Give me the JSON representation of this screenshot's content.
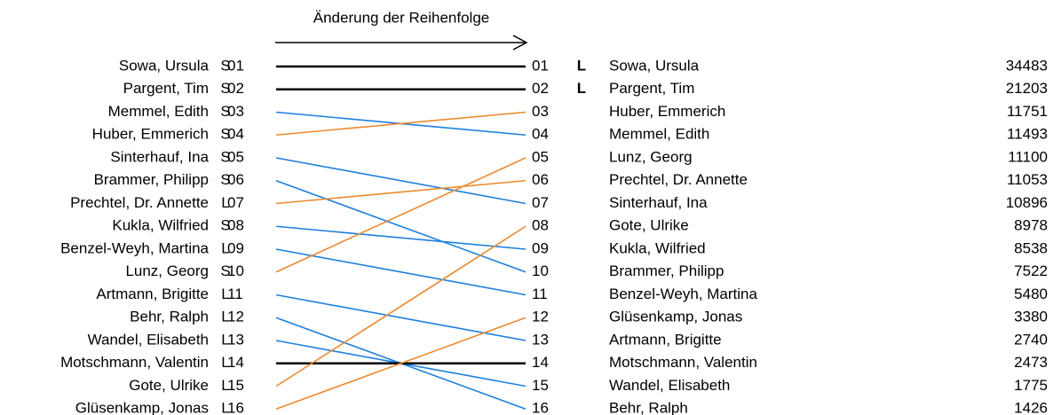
{
  "title": "Änderung der Reihenfolge",
  "left": [
    {
      "name": "Sowa, Ursula",
      "list": "S",
      "rank": "01"
    },
    {
      "name": "Pargent, Tim",
      "list": "S",
      "rank": "02"
    },
    {
      "name": "Memmel, Edith",
      "list": "S",
      "rank": "03"
    },
    {
      "name": "Huber, Emmerich",
      "list": "S",
      "rank": "04"
    },
    {
      "name": "Sinterhauf, Ina",
      "list": "S",
      "rank": "05"
    },
    {
      "name": "Brammer, Philipp",
      "list": "S",
      "rank": "06"
    },
    {
      "name": "Prechtel, Dr. Annette",
      "list": "L",
      "rank": "07"
    },
    {
      "name": "Kukla, Wilfried",
      "list": "S",
      "rank": "08"
    },
    {
      "name": "Benzel-Weyh, Martina",
      "list": "L",
      "rank": "09"
    },
    {
      "name": "Lunz, Georg",
      "list": "S",
      "rank": "10"
    },
    {
      "name": "Artmann, Brigitte",
      "list": "L",
      "rank": "11"
    },
    {
      "name": "Behr, Ralph",
      "list": "L",
      "rank": "12"
    },
    {
      "name": "Wandel, Elisabeth",
      "list": "L",
      "rank": "13"
    },
    {
      "name": "Motschmann, Valentin",
      "list": "L",
      "rank": "14"
    },
    {
      "name": "Gote, Ulrike",
      "list": "L",
      "rank": "15"
    },
    {
      "name": "Glüsenkamp, Jonas",
      "list": "L",
      "rank": "16"
    }
  ],
  "right": [
    {
      "rank": "01",
      "mark": "L",
      "name": "Sowa, Ursula",
      "votes": 34483
    },
    {
      "rank": "02",
      "mark": "L",
      "name": "Pargent, Tim",
      "votes": 21203
    },
    {
      "rank": "03",
      "name": "Huber, Emmerich",
      "votes": 11751
    },
    {
      "rank": "04",
      "name": "Memmel, Edith",
      "votes": 11493
    },
    {
      "rank": "05",
      "name": "Lunz, Georg",
      "votes": 11100
    },
    {
      "rank": "06",
      "name": "Prechtel, Dr. Annette",
      "votes": 11053
    },
    {
      "rank": "07",
      "name": "Sinterhauf, Ina",
      "votes": 10896
    },
    {
      "rank": "08",
      "name": "Gote, Ulrike",
      "votes": 8978
    },
    {
      "rank": "09",
      "name": "Kukla, Wilfried",
      "votes": 8538
    },
    {
      "rank": "10",
      "name": "Brammer, Philipp",
      "votes": 7522
    },
    {
      "rank": "11",
      "name": "Benzel-Weyh, Martina",
      "votes": 5480
    },
    {
      "rank": "12",
      "name": "Glüsenkamp, Jonas",
      "votes": 3380
    },
    {
      "rank": "13",
      "name": "Artmann, Brigitte",
      "votes": 2740
    },
    {
      "rank": "14",
      "name": "Motschmann, Valentin",
      "votes": 2473
    },
    {
      "rank": "15",
      "name": "Wandel, Elisabeth",
      "votes": 1775
    },
    {
      "rank": "16",
      "name": "Behr, Ralph",
      "votes": 1426
    }
  ]
}
